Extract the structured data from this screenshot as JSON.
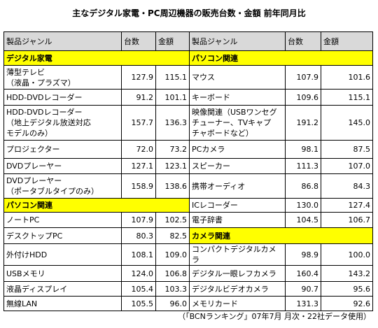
{
  "title": "主なデジタル家電・PC周辺機器の販売台数・金額 前年同月比",
  "columns": [
    "製品ジャンル",
    "台数",
    "金額",
    "製品ジャンル",
    "台数",
    "金額"
  ],
  "rows": [
    {
      "left": {
        "section": "デジタル家電"
      },
      "right": {
        "section": "パソコン関連"
      }
    },
    {
      "left": {
        "name": "薄型テレビ\n（液晶・プラズマ）",
        "units": "127.9",
        "amount": "115.1"
      },
      "right": {
        "name": "マウス",
        "units": "107.9",
        "amount": "101.6"
      }
    },
    {
      "left": {
        "name": "HDD-DVDレコーダー",
        "units": "91.2",
        "amount": "101.1"
      },
      "right": {
        "name": "キーボード",
        "units": "109.6",
        "amount": "115.1"
      }
    },
    {
      "left": {
        "name": "HDD-DVDレコーダー\n（地上デジタル放送対応\nモデルのみ）",
        "units": "157.7",
        "amount": "136.3"
      },
      "right": {
        "name": "映像関連（USBワンセグ\nチューナー、TVキャプ\nチャボードなど）",
        "units": "191.2",
        "amount": "145.0"
      }
    },
    {
      "left": {
        "name": "プロジェクター",
        "units": "72.0",
        "amount": "73.2"
      },
      "right": {
        "name": "PCカメラ",
        "units": "98.1",
        "amount": "87.5"
      }
    },
    {
      "left": {
        "name": "DVDプレーヤー",
        "units": "127.1",
        "amount": "123.1"
      },
      "right": {
        "name": "スピーカー",
        "units": "111.3",
        "amount": "107.0"
      }
    },
    {
      "left": {
        "name": "DVDプレーヤー\n（ポータブルタイプのみ）",
        "units": "158.9",
        "amount": "138.6"
      },
      "right": {
        "name": "携帯オーディオ",
        "units": "86.8",
        "amount": "84.3"
      }
    },
    {
      "left": {
        "section": "パソコン関連"
      },
      "right": {
        "name": "ICレコーダー",
        "units": "130.0",
        "amount": "127.4"
      }
    },
    {
      "left": {
        "name": "ノートPC",
        "units": "107.9",
        "amount": "102.5"
      },
      "right": {
        "name": "電子辞書",
        "units": "104.5",
        "amount": "106.7"
      }
    },
    {
      "left": {
        "name": "デスクトップPC",
        "units": "80.3",
        "amount": "82.5"
      },
      "right": {
        "section": "カメラ関連"
      }
    },
    {
      "left": {
        "name": "外付けHDD",
        "units": "108.1",
        "amount": "109.0"
      },
      "right": {
        "name": "コンパクトデジタルカメラ",
        "units": "98.9",
        "amount": "100.0"
      }
    },
    {
      "left": {
        "name": "USBメモリ",
        "units": "124.0",
        "amount": "106.8"
      },
      "right": {
        "name": "デジタル一眼レフカメラ",
        "units": "160.4",
        "amount": "143.2"
      }
    },
    {
      "left": {
        "name": "液晶ディスプレイ",
        "units": "105.4",
        "amount": "103.3"
      },
      "right": {
        "name": "デジタルビデオカメラ",
        "units": "90.7",
        "amount": "95.6"
      }
    },
    {
      "left": {
        "name": "無線LAN",
        "units": "105.5",
        "amount": "96.0"
      },
      "right": {
        "name": "メモリカード",
        "units": "131.3",
        "amount": "92.6"
      }
    }
  ],
  "footer": "（「BCNランキング」07年7月 月次・22社データ使用）"
}
